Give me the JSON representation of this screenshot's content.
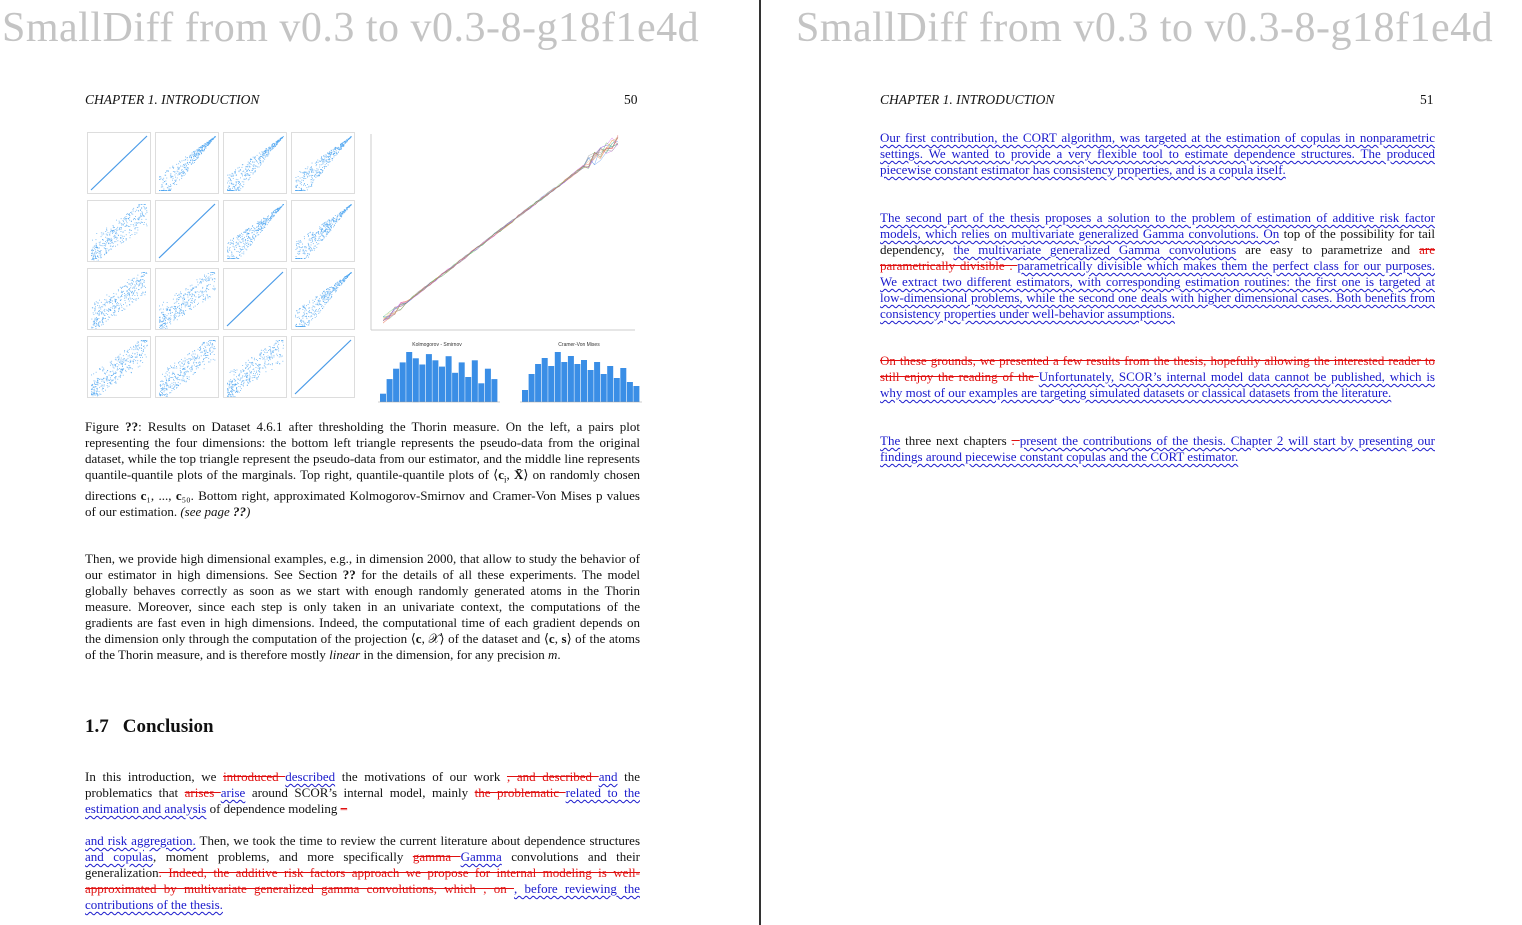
{
  "watermark": "SmallDiff from v0.3 to v0.3-8-g18f1e4d",
  "left_page": {
    "running_head": "CHAPTER 1.  INTRODUCTION",
    "page_number": "50",
    "figure": {
      "hist1_title": "Kolmogorov - Smirnov",
      "hist2_title": "Cramer-Von Mises",
      "hist1_values": [
        20,
        55,
        80,
        95,
        120,
        105,
        90,
        115,
        100,
        85,
        110,
        70,
        95,
        60,
        100,
        45,
        80,
        55
      ],
      "hist2_values": [
        30,
        70,
        95,
        110,
        90,
        125,
        100,
        115,
        95,
        105,
        80,
        100,
        70,
        90,
        60,
        85,
        50,
        40
      ]
    },
    "caption": {
      "label": "Figure ",
      "ref": "??",
      "text1": ": Results on Dataset 4.6.1 after thresholding the Thorin measure. On the left, a pairs plot representing the four dimensions: the bottom left triangle represents the pseudo-data from the original dataset, while the top triangle represent the pseudo-data from our estimator, and the middle line represents quantile-quantile plots of the marginals. Top right, quantile-quantile plots of ⟨",
      "ci": "c",
      "sub_i": "i",
      "text2": ", ",
      "X": "X̄",
      "text3": "⟩ on randomly chosen directions ",
      "c1": "c",
      "text4": "₁, ..., ",
      "c50": "c",
      "text5": "₅₀. Bottom right, approximated Kolmogorov-Smirnov and Cramer-Von Mises p values of our estimation. ",
      "see": "(see page ",
      "see_ref": "??",
      "see_end": ")"
    },
    "paragraph1": {
      "a": "Then, we provide high dimensional examples, e.g., in dimension 2000, that allow to study the behavior of our estimator in high dimensions. See Section ",
      "ref": "??",
      "b": " for the details of all these experiments. The model globally behaves correctly as soon as we start with enough randomly generated atoms in the Thorin measure. Moreover, since each step is only taken in an univariate context, the computations of the gradients are fast even in high dimensions. Indeed, the computational time of each gradient depends on the dimension only through the computation of the projection ⟨",
      "c": "c",
      "d": ", 𝒳⟩ of the dataset and ⟨",
      "e": "c",
      "f": ", ",
      "s": "s",
      "g": "⟩ of the atoms of the Thorin measure, and is therefore mostly ",
      "linear": "linear",
      "h": " in the dimension, for any precision ",
      "m": "m",
      "end": "."
    },
    "section": {
      "number": "1.7",
      "title": "Conclusion"
    },
    "paragraph2": [
      {
        "t": "In this introduction, we ",
        "k": "n"
      },
      {
        "t": "introduced ",
        "k": "del"
      },
      {
        "t": "described",
        "k": "add"
      },
      {
        "t": " the motivations of our work ",
        "k": "n"
      },
      {
        "t": ", and described ",
        "k": "del"
      },
      {
        "t": "and",
        "k": "add"
      },
      {
        "t": " the problematics that ",
        "k": "n"
      },
      {
        "t": "arises ",
        "k": "del"
      },
      {
        "t": "arise",
        "k": "add"
      },
      {
        "t": " around SCOR’s internal model, mainly ",
        "k": "n"
      },
      {
        "t": "the problematic ",
        "k": "del"
      },
      {
        "t": "related to the estimation and analysis",
        "k": "add"
      },
      {
        "t": " of dependence modeling ",
        "k": "n"
      },
      {
        "t": "–",
        "k": "del"
      }
    ],
    "paragraph3": [
      {
        "t": "and risk aggregation.",
        "k": "add"
      },
      {
        "t": " Then, we took the time to review the current literature about dependence structures ",
        "k": "n"
      },
      {
        "t": "and copulas",
        "k": "add"
      },
      {
        "t": ", moment problems, and more specifically ",
        "k": "n"
      },
      {
        "t": "gamma ",
        "k": "del"
      },
      {
        "t": "Gamma",
        "k": "add"
      },
      {
        "t": " convolutions and their generalization",
        "k": "n"
      },
      {
        "t": ". Indeed, the additive risk factors approach we propose for internal modeling is well-approximated by multivariate generalized gamma convolutions, which , on ",
        "k": "del"
      },
      {
        "t": ", before reviewing the contributions of the thesis.",
        "k": "add"
      }
    ]
  },
  "right_page": {
    "running_head": "CHAPTER 1.  INTRODUCTION",
    "page_number": "51",
    "paragraph1": [
      {
        "t": "Our first contribution, the CORT algorithm, was targeted at the estimation of copulas in nonparametric settings. We wanted to provide a very flexible tool to estimate dependence structures. The produced piecewise constant estimator has consistency properties, and is a copula itself.",
        "k": "add"
      }
    ],
    "paragraph2": [
      {
        "t": "The second part of the thesis proposes a solution to the problem of estimation of additive risk factor models, which relies on multivariate generalized Gamma convolutions. On",
        "k": "add"
      },
      {
        "t": " top of the possibility for tail dependency, ",
        "k": "n"
      },
      {
        "t": "the multivariate generalized Gamma convolutions",
        "k": "add"
      },
      {
        "t": " are easy to parametrize and ",
        "k": "n"
      },
      {
        "t": "are parametrically divisible . ",
        "k": "del"
      },
      {
        "t": "parametrically divisible which makes them the perfect class for our purposes. We extract two different estimators, with corresponding estimation routines: the first one is targeted at low-dimensional problems, while the second one deals with higher dimensional cases. Both benefits from consistency properties under well-behavior assumptions.",
        "k": "add"
      }
    ],
    "paragraph3": [
      {
        "t": "On these grounds, we presented a few results from the thesis, hopefully allowing the interested reader to still enjoy the reading of the ",
        "k": "del"
      },
      {
        "t": "Unfortunately, SCOR’s internal model data cannot be published, which is why most of our examples are targeting simulated datasets or classical datasets from the literature.",
        "k": "add"
      }
    ],
    "paragraph4": [
      {
        "t": "The",
        "k": "add"
      },
      {
        "t": " three next chapters ",
        "k": "n"
      },
      {
        "t": ". ",
        "k": "del"
      },
      {
        "t": "present the contributions of the thesis. Chapter 2 will start by presenting our findings around piecewise constant copulas and the CORT estimator.",
        "k": "add"
      }
    ]
  }
}
